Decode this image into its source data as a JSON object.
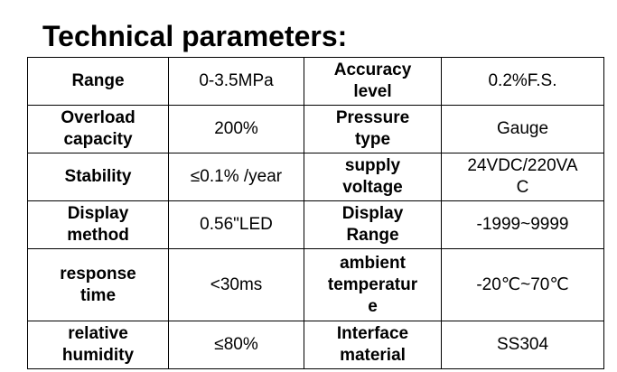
{
  "header": {
    "title": "Technical parameters:"
  },
  "table": {
    "rows": [
      [
        "Range",
        "0-3.5MPa",
        "Accuracy level",
        "0.2%F.S."
      ],
      [
        "Overload capacity",
        "200%",
        "Pressure type",
        "Gauge"
      ],
      [
        "Stability",
        "≤0.1% /year",
        "supply voltage",
        "24VDC/220VAC"
      ],
      [
        "Display method",
        "0.56\"LED",
        "Display Range",
        "-1999~9999"
      ],
      [
        "response time",
        "<30ms",
        "ambient temperature",
        "-20℃~70℃"
      ],
      [
        "relative humidity",
        "≤80%",
        "Interface material",
        "SS304"
      ]
    ]
  }
}
